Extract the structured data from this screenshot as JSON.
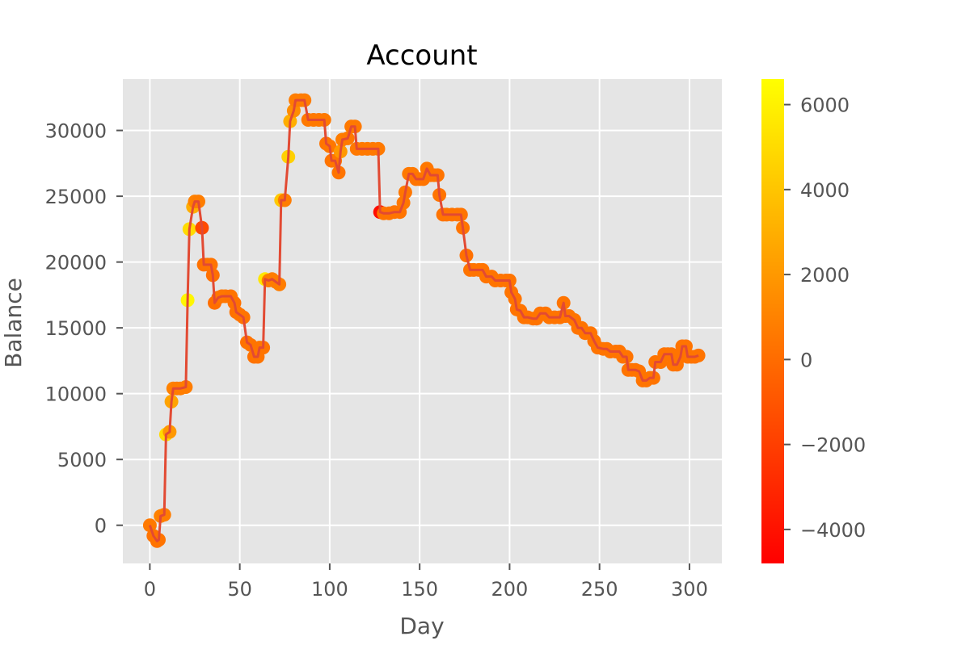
{
  "chart_data": {
    "type": "line",
    "title": "Account",
    "xlabel": "Day",
    "ylabel": "Balance",
    "xlim": [
      -15,
      318
    ],
    "ylim": [
      -2900,
      33900
    ],
    "xticks": [
      0,
      50,
      100,
      150,
      200,
      250,
      300
    ],
    "yticks": [
      0,
      5000,
      10000,
      15000,
      20000,
      25000,
      30000
    ],
    "grid": true,
    "colorbar": {
      "ticks": [
        6000,
        4000,
        2000,
        0,
        -2000,
        -4000
      ],
      "tick_labels": [
        "6000",
        "4000",
        "2000",
        "0",
        "−2000",
        "−4000"
      ],
      "range": [
        -4800,
        6600
      ],
      "colormap": [
        "#ff0000",
        "#ff8000",
        "#ffff00"
      ]
    },
    "colors": {
      "background": "#e5e5e5",
      "grid": "#ffffff",
      "line": "#e24a33"
    },
    "series": [
      {
        "points": [
          [
            0,
            0,
            600
          ],
          [
            2,
            -800,
            400
          ],
          [
            4,
            -1200,
            300
          ],
          [
            5,
            -1100,
            400
          ],
          [
            6,
            700,
            1000
          ],
          [
            8,
            800,
            800
          ],
          [
            9,
            6900,
            5000
          ],
          [
            11,
            7100,
            2000
          ],
          [
            12,
            9400,
            2500
          ],
          [
            13,
            10400,
            1000
          ],
          [
            15,
            10400,
            800
          ],
          [
            17,
            10400,
            800
          ],
          [
            20,
            10500,
            800
          ],
          [
            21,
            17100,
            6200
          ],
          [
            22,
            22500,
            5000
          ],
          [
            24,
            24200,
            3000
          ],
          [
            25,
            24600,
            1000
          ],
          [
            27,
            24600,
            800
          ],
          [
            29,
            22600,
            -1500
          ],
          [
            30,
            19800,
            300
          ],
          [
            32,
            19800,
            400
          ],
          [
            34,
            19800,
            400
          ],
          [
            35,
            19000,
            200
          ],
          [
            36,
            16900,
            100
          ],
          [
            38,
            17300,
            300
          ],
          [
            40,
            17400,
            500
          ],
          [
            42,
            17400,
            500
          ],
          [
            45,
            17400,
            400
          ],
          [
            47,
            16900,
            300
          ],
          [
            48,
            16200,
            300
          ],
          [
            50,
            16000,
            400
          ],
          [
            52,
            15800,
            400
          ],
          [
            54,
            13900,
            300
          ],
          [
            56,
            13700,
            400
          ],
          [
            58,
            12800,
            300
          ],
          [
            60,
            12800,
            400
          ],
          [
            61,
            13500,
            400
          ],
          [
            63,
            13500,
            400
          ],
          [
            64,
            18700,
            5500
          ],
          [
            66,
            18600,
            800
          ],
          [
            68,
            18700,
            800
          ],
          [
            70,
            18500,
            800
          ],
          [
            72,
            18300,
            800
          ],
          [
            73,
            24700,
            4200
          ],
          [
            75,
            24700,
            800
          ],
          [
            77,
            28000,
            4500
          ],
          [
            78,
            30700,
            3000
          ],
          [
            80,
            31500,
            1500
          ],
          [
            81,
            32300,
            800
          ],
          [
            84,
            32300,
            800
          ],
          [
            86,
            32300,
            800
          ],
          [
            88,
            30800,
            600
          ],
          [
            91,
            30800,
            600
          ],
          [
            94,
            30800,
            600
          ],
          [
            97,
            30800,
            600
          ],
          [
            98,
            29000,
            400
          ],
          [
            100,
            28800,
            500
          ],
          [
            101,
            27700,
            400
          ],
          [
            103,
            27700,
            500
          ],
          [
            105,
            26800,
            400
          ],
          [
            106,
            28400,
            2000
          ],
          [
            107,
            29300,
            800
          ],
          [
            110,
            29400,
            600
          ],
          [
            112,
            30300,
            600
          ],
          [
            114,
            30300,
            600
          ],
          [
            115,
            28600,
            600
          ],
          [
            118,
            28600,
            600
          ],
          [
            121,
            28600,
            600
          ],
          [
            124,
            28600,
            600
          ],
          [
            127,
            28600,
            600
          ],
          [
            128,
            23800,
            -4200
          ],
          [
            130,
            23700,
            400
          ],
          [
            133,
            23700,
            400
          ],
          [
            136,
            23800,
            400
          ],
          [
            139,
            23800,
            400
          ],
          [
            141,
            24500,
            500
          ],
          [
            142,
            25300,
            500
          ],
          [
            144,
            26700,
            600
          ],
          [
            146,
            26700,
            600
          ],
          [
            148,
            26300,
            400
          ],
          [
            150,
            26300,
            400
          ],
          [
            152,
            26300,
            400
          ],
          [
            154,
            27100,
            500
          ],
          [
            156,
            26600,
            400
          ],
          [
            158,
            26600,
            400
          ],
          [
            160,
            26600,
            400
          ],
          [
            161,
            25100,
            400
          ],
          [
            163,
            23600,
            400
          ],
          [
            165,
            23600,
            400
          ],
          [
            168,
            23600,
            400
          ],
          [
            171,
            23600,
            400
          ],
          [
            173,
            23600,
            400
          ],
          [
            174,
            22600,
            400
          ],
          [
            176,
            20500,
            200
          ],
          [
            178,
            19400,
            400
          ],
          [
            180,
            19400,
            400
          ],
          [
            183,
            19400,
            400
          ],
          [
            185,
            19400,
            400
          ],
          [
            187,
            18900,
            400
          ],
          [
            190,
            18900,
            400
          ],
          [
            192,
            18600,
            400
          ],
          [
            195,
            18600,
            400
          ],
          [
            198,
            18600,
            400
          ],
          [
            200,
            18600,
            400
          ],
          [
            201,
            17700,
            400
          ],
          [
            203,
            17200,
            400
          ],
          [
            204,
            16400,
            400
          ],
          [
            206,
            16300,
            400
          ],
          [
            208,
            15800,
            400
          ],
          [
            210,
            15800,
            400
          ],
          [
            213,
            15700,
            400
          ],
          [
            215,
            15700,
            400
          ],
          [
            217,
            16100,
            400
          ],
          [
            220,
            16100,
            400
          ],
          [
            222,
            15800,
            400
          ],
          [
            225,
            15800,
            400
          ],
          [
            228,
            15800,
            400
          ],
          [
            230,
            16900,
            400
          ],
          [
            231,
            15900,
            400
          ],
          [
            233,
            15900,
            400
          ],
          [
            236,
            15600,
            400
          ],
          [
            238,
            15000,
            400
          ],
          [
            240,
            15000,
            400
          ],
          [
            242,
            14600,
            400
          ],
          [
            245,
            14600,
            400
          ],
          [
            247,
            14000,
            400
          ],
          [
            249,
            13500,
            400
          ],
          [
            252,
            13400,
            400
          ],
          [
            254,
            13400,
            400
          ],
          [
            256,
            13200,
            400
          ],
          [
            259,
            13200,
            400
          ],
          [
            261,
            13200,
            400
          ],
          [
            263,
            12800,
            400
          ],
          [
            265,
            12800,
            400
          ],
          [
            266,
            11800,
            400
          ],
          [
            268,
            11800,
            400
          ],
          [
            270,
            11800,
            400
          ],
          [
            272,
            11700,
            400
          ],
          [
            274,
            11000,
            400
          ],
          [
            276,
            11000,
            400
          ],
          [
            278,
            11200,
            400
          ],
          [
            280,
            11200,
            400
          ],
          [
            281,
            12400,
            400
          ],
          [
            284,
            12400,
            400
          ],
          [
            286,
            13000,
            400
          ],
          [
            288,
            13000,
            400
          ],
          [
            290,
            13000,
            400
          ],
          [
            291,
            12200,
            400
          ],
          [
            293,
            12200,
            400
          ],
          [
            295,
            12800,
            400
          ],
          [
            296,
            13600,
            400
          ],
          [
            298,
            13600,
            400
          ],
          [
            299,
            12800,
            400
          ],
          [
            301,
            12800,
            400
          ],
          [
            303,
            12800,
            400
          ],
          [
            305,
            12900,
            400
          ]
        ]
      }
    ]
  }
}
